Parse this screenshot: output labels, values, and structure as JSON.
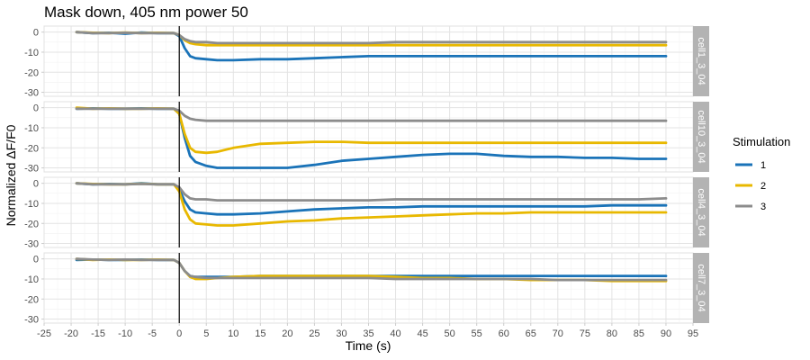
{
  "chart_data": {
    "type": "line",
    "title": "Mask down, 405 nm power 50",
    "xlabel": "Time (s)",
    "ylabel": "Normalized ΔF/F0",
    "xlim": [
      -25,
      95
    ],
    "ylim": [
      -32,
      3
    ],
    "x_ticks": [
      -25,
      -20,
      -15,
      -10,
      -5,
      0,
      5,
      10,
      15,
      20,
      25,
      30,
      35,
      40,
      45,
      50,
      55,
      60,
      65,
      70,
      75,
      80,
      85,
      90,
      95
    ],
    "y_ticks": [
      0,
      -10,
      -20,
      -30
    ],
    "vline_x": 0,
    "grid": true,
    "legend": {
      "title": "Stimulation",
      "position": "right",
      "entries": [
        {
          "label": "1",
          "color": "#1a73b8"
        },
        {
          "label": "2",
          "color": "#e8b800"
        },
        {
          "label": "3",
          "color": "#8c8c8c"
        }
      ]
    },
    "x": [
      -19,
      -16,
      -13,
      -10,
      -7,
      -4,
      -1,
      0,
      1,
      2,
      3,
      5,
      7,
      10,
      15,
      20,
      25,
      30,
      35,
      40,
      45,
      50,
      55,
      60,
      65,
      70,
      75,
      80,
      85,
      90
    ],
    "panels": [
      {
        "label": "cell1_3_04",
        "series": [
          {
            "name": "1",
            "values": [
              0,
              -0.5,
              -0.3,
              -0.8,
              -0.2,
              -0.5,
              -0.5,
              -2,
              -8,
              -12,
              -13,
              -13.5,
              -14,
              -14,
              -13.5,
              -13.5,
              -13,
              -12.5,
              -12,
              -12,
              -12,
              -12,
              -12,
              -12,
              -12,
              -12,
              -12,
              -12,
              -12,
              -12
            ]
          },
          {
            "name": "2",
            "values": [
              0,
              -0.3,
              -0.5,
              -0.2,
              -0.5,
              -0.3,
              -0.5,
              -1.5,
              -4,
              -5.5,
              -6,
              -6.5,
              -6.5,
              -6.5,
              -6.5,
              -6.5,
              -6.5,
              -6.5,
              -6.5,
              -6.5,
              -6.5,
              -6.5,
              -6.5,
              -6.5,
              -6.5,
              -6.5,
              -6.5,
              -6.5,
              -6.5,
              -6.5
            ]
          },
          {
            "name": "3",
            "values": [
              0,
              -0.5,
              -0.5,
              -0.3,
              -0.5,
              -0.5,
              -0.5,
              -1.5,
              -3.5,
              -4.5,
              -5,
              -5,
              -5.5,
              -5.5,
              -5.5,
              -5.5,
              -5.5,
              -5.5,
              -5.5,
              -5,
              -5,
              -5,
              -5,
              -5,
              -5,
              -5,
              -5,
              -5,
              -5,
              -5
            ]
          }
        ]
      },
      {
        "label": "cell10_3_04",
        "series": [
          {
            "name": "1",
            "values": [
              -0.5,
              -0.3,
              -0.5,
              -0.5,
              -0.3,
              -0.5,
              -0.5,
              -3,
              -15,
              -24,
              -27,
              -29,
              -30,
              -30,
              -30,
              -30,
              -28.5,
              -26.5,
              -25.5,
              -24.5,
              -23.5,
              -23,
              -23,
              -24,
              -24.5,
              -24.5,
              -25,
              -25,
              -25.5,
              -25.5
            ]
          },
          {
            "name": "2",
            "values": [
              0,
              -0.5,
              -0.3,
              -0.5,
              -0.5,
              -0.3,
              -0.5,
              -3,
              -13,
              -20,
              -22,
              -22.5,
              -22,
              -20,
              -18,
              -17.5,
              -17,
              -17,
              -17.5,
              -17.5,
              -17.5,
              -17.5,
              -17.5,
              -17.5,
              -17.5,
              -17.5,
              -17.5,
              -17.5,
              -17.5,
              -17.5
            ]
          },
          {
            "name": "3",
            "values": [
              -0.5,
              -0.5,
              -0.5,
              -0.5,
              -0.5,
              -0.5,
              -0.5,
              -1.5,
              -4,
              -5.5,
              -6,
              -6.5,
              -6.5,
              -6.5,
              -6.5,
              -6.5,
              -6.5,
              -6.5,
              -6.5,
              -6.5,
              -6.5,
              -6.5,
              -6.5,
              -6.5,
              -6.5,
              -6.5,
              -6.5,
              -6.5,
              -6.5,
              -6.5
            ]
          }
        ]
      },
      {
        "label": "cell4_3_04",
        "series": [
          {
            "name": "1",
            "values": [
              0,
              -0.5,
              -0.3,
              -0.5,
              0,
              -0.5,
              -0.5,
              -3,
              -9,
              -13,
              -14.5,
              -15,
              -15.5,
              -15.5,
              -15,
              -14,
              -13,
              -12.5,
              -12,
              -12,
              -11.5,
              -11.5,
              -11.5,
              -11.5,
              -11.5,
              -11.5,
              -11.5,
              -11,
              -11,
              -11
            ]
          },
          {
            "name": "2",
            "values": [
              0,
              -0.3,
              -0.5,
              -0.5,
              -0.2,
              -0.5,
              -0.5,
              -4,
              -13,
              -18,
              -20,
              -20.5,
              -21,
              -21,
              -20,
              -19,
              -18.5,
              -17.5,
              -17,
              -16.5,
              -16,
              -15.5,
              -15,
              -15,
              -14.5,
              -14.5,
              -14.5,
              -14.5,
              -14.5,
              -14.5
            ]
          },
          {
            "name": "3",
            "values": [
              0,
              -0.5,
              -0.5,
              -0.5,
              -0.3,
              -0.5,
              -0.5,
              -2,
              -5.5,
              -7.5,
              -8,
              -8,
              -8.5,
              -8.5,
              -8.5,
              -8.5,
              -8.5,
              -8.5,
              -8.5,
              -8,
              -8,
              -8,
              -8,
              -8,
              -8,
              -8,
              -8,
              -8,
              -8,
              -7.5
            ]
          }
        ]
      },
      {
        "label": "cell7_3_04",
        "series": [
          {
            "name": "1",
            "values": [
              -0.5,
              -0.3,
              -0.5,
              -0.5,
              -0.3,
              -0.5,
              -0.5,
              -2,
              -6,
              -8.5,
              -9,
              -9,
              -9,
              -9,
              -8.5,
              -8.5,
              -8.5,
              -8.5,
              -8.5,
              -8.5,
              -8.5,
              -8.5,
              -8.5,
              -8.5,
              -8.5,
              -8.5,
              -8.5,
              -8.5,
              -8.5,
              -8.5
            ]
          },
          {
            "name": "2",
            "values": [
              0,
              -0.5,
              -0.3,
              -0.5,
              -0.5,
              -0.3,
              -0.5,
              -2,
              -6,
              -9,
              -10,
              -10,
              -9.5,
              -9,
              -8.5,
              -8.5,
              -8.5,
              -8.5,
              -8.5,
              -9,
              -9.5,
              -9.5,
              -10,
              -10,
              -10.5,
              -10.5,
              -10.5,
              -11,
              -11,
              -11
            ]
          },
          {
            "name": "3",
            "values": [
              0,
              -0.3,
              -0.5,
              -0.3,
              -0.5,
              -0.5,
              -0.5,
              -2,
              -6,
              -8.5,
              -9,
              -9.5,
              -9.5,
              -9.5,
              -9.5,
              -9.5,
              -9.5,
              -9.5,
              -9.5,
              -10,
              -10,
              -10,
              -10,
              -10,
              -10,
              -10.5,
              -10.5,
              -10.5,
              -10.5,
              -10.5
            ]
          }
        ]
      }
    ]
  }
}
